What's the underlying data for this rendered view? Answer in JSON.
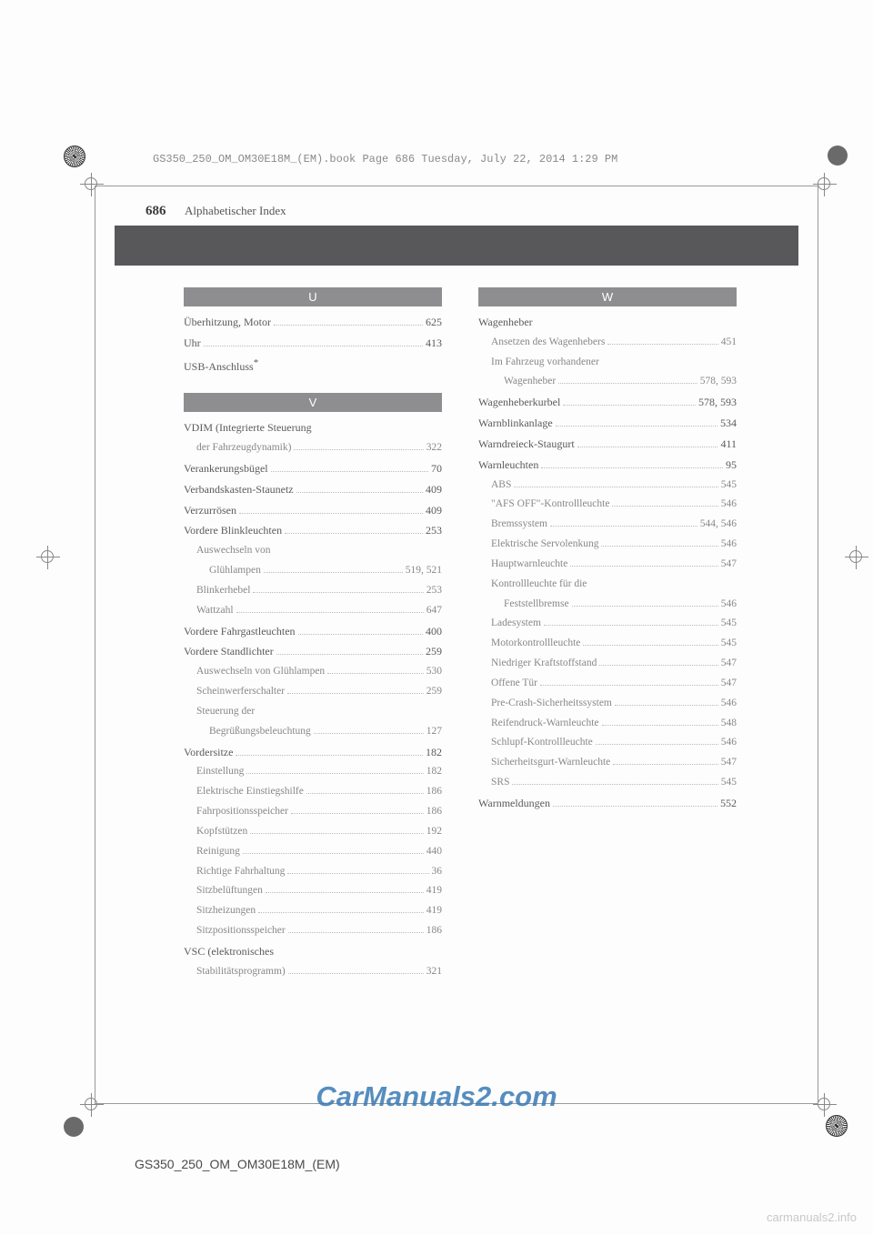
{
  "book_header": "GS350_250_OM_OM30E18M_(EM).book  Page 686  Tuesday, July 22, 2014  1:29 PM",
  "page_number": "686",
  "header_title": "Alphabetischer Index",
  "footer_code": "GS350_250_OM_OM30E18M_(EM)",
  "watermark_main": "CarManuals2.com",
  "watermark_footer": "carmanuals2.info",
  "colors": {
    "band": "#58585a",
    "section_header": "#8e8e90",
    "watermark": "#3a7ab5"
  },
  "sections": {
    "U": {
      "letter": "U",
      "entries": [
        {
          "label": "Überhitzung, Motor",
          "page": "625",
          "indent": 0
        },
        {
          "label": "Uhr",
          "page": "413",
          "indent": 0
        },
        {
          "label": "USB-Anschluss",
          "page": "",
          "indent": 0,
          "star": true
        }
      ]
    },
    "V": {
      "letter": "V",
      "entries": [
        {
          "label": "VDIM (Integrierte Steuerung",
          "page": "",
          "indent": 0,
          "nolead": true
        },
        {
          "label": "der Fahrzeugdynamik)",
          "page": "322",
          "indent": 1
        },
        {
          "label": "Verankerungsbügel",
          "page": "70",
          "indent": 0
        },
        {
          "label": "Verbandskasten-Staunetz",
          "page": "409",
          "indent": 0
        },
        {
          "label": "Verzurrösen",
          "page": "409",
          "indent": 0
        },
        {
          "label": "Vordere Blinkleuchten",
          "page": "253",
          "indent": 0
        },
        {
          "label": "Auswechseln von",
          "page": "",
          "indent": 1,
          "nolead": true
        },
        {
          "label": "Glühlampen",
          "page": "519, 521",
          "indent": 2
        },
        {
          "label": "Blinkerhebel",
          "page": "253",
          "indent": 1
        },
        {
          "label": "Wattzahl",
          "page": "647",
          "indent": 1
        },
        {
          "label": "Vordere Fahrgastleuchten",
          "page": "400",
          "indent": 0
        },
        {
          "label": "Vordere Standlichter",
          "page": "259",
          "indent": 0
        },
        {
          "label": "Auswechseln von Glühlampen",
          "page": "530",
          "indent": 1
        },
        {
          "label": "Scheinwerferschalter",
          "page": "259",
          "indent": 1
        },
        {
          "label": "Steuerung der",
          "page": "",
          "indent": 1,
          "nolead": true
        },
        {
          "label": "Begrüßungsbeleuchtung",
          "page": "127",
          "indent": 2
        },
        {
          "label": "Vordersitze",
          "page": "182",
          "indent": 0
        },
        {
          "label": "Einstellung",
          "page": "182",
          "indent": 1
        },
        {
          "label": "Elektrische Einstiegshilfe",
          "page": "186",
          "indent": 1
        },
        {
          "label": "Fahrpositionsspeicher",
          "page": "186",
          "indent": 1
        },
        {
          "label": "Kopfstützen",
          "page": "192",
          "indent": 1
        },
        {
          "label": "Reinigung",
          "page": "440",
          "indent": 1
        },
        {
          "label": "Richtige Fahrhaltung",
          "page": "36",
          "indent": 1
        },
        {
          "label": "Sitzbelüftungen",
          "page": "419",
          "indent": 1
        },
        {
          "label": "Sitzheizungen",
          "page": "419",
          "indent": 1
        },
        {
          "label": "Sitzpositionsspeicher",
          "page": "186",
          "indent": 1
        },
        {
          "label": "VSC (elektronisches",
          "page": "",
          "indent": 0,
          "nolead": true
        },
        {
          "label": "Stabilitätsprogramm)",
          "page": "321",
          "indent": 1
        }
      ]
    },
    "W": {
      "letter": "W",
      "entries": [
        {
          "label": "Wagenheber",
          "page": "",
          "indent": 0,
          "nolead": true
        },
        {
          "label": "Ansetzen des Wagenhebers",
          "page": "451",
          "indent": 1
        },
        {
          "label": "Im Fahrzeug vorhandener",
          "page": "",
          "indent": 1,
          "nolead": true
        },
        {
          "label": "Wagenheber",
          "page": "578, 593",
          "indent": 2
        },
        {
          "label": "Wagenheberkurbel",
          "page": "578, 593",
          "indent": 0
        },
        {
          "label": "Warnblinkanlage",
          "page": "534",
          "indent": 0
        },
        {
          "label": "Warndreieck-Staugurt",
          "page": "411",
          "indent": 0
        },
        {
          "label": "Warnleuchten",
          "page": "95",
          "indent": 0
        },
        {
          "label": "ABS",
          "page": "545",
          "indent": 1
        },
        {
          "label": "\"AFS OFF\"-Kontrollleuchte",
          "page": "546",
          "indent": 1
        },
        {
          "label": "Bremssystem",
          "page": "544, 546",
          "indent": 1
        },
        {
          "label": "Elektrische Servolenkung ",
          "page": "546",
          "indent": 1
        },
        {
          "label": "Hauptwarnleuchte",
          "page": "547",
          "indent": 1
        },
        {
          "label": "Kontrollleuchte für die",
          "page": "",
          "indent": 1,
          "nolead": true
        },
        {
          "label": "Feststellbremse",
          "page": "546",
          "indent": 2
        },
        {
          "label": "Ladesystem",
          "page": "545",
          "indent": 1
        },
        {
          "label": "Motorkontrollleuchte",
          "page": "545",
          "indent": 1
        },
        {
          "label": "Niedriger Kraftstoffstand",
          "page": "547",
          "indent": 1
        },
        {
          "label": "Offene Tür",
          "page": "547",
          "indent": 1
        },
        {
          "label": "Pre-Crash-Sicherheitssystem",
          "page": "546",
          "indent": 1
        },
        {
          "label": "Reifendruck-Warnleuchte",
          "page": "548",
          "indent": 1
        },
        {
          "label": "Schlupf-Kontrollleuchte",
          "page": "546",
          "indent": 1
        },
        {
          "label": "Sicherheitsgurt-Warnleuchte",
          "page": "547",
          "indent": 1
        },
        {
          "label": "SRS",
          "page": "545",
          "indent": 1
        },
        {
          "label": "Warnmeldungen",
          "page": "552",
          "indent": 0
        }
      ]
    }
  }
}
